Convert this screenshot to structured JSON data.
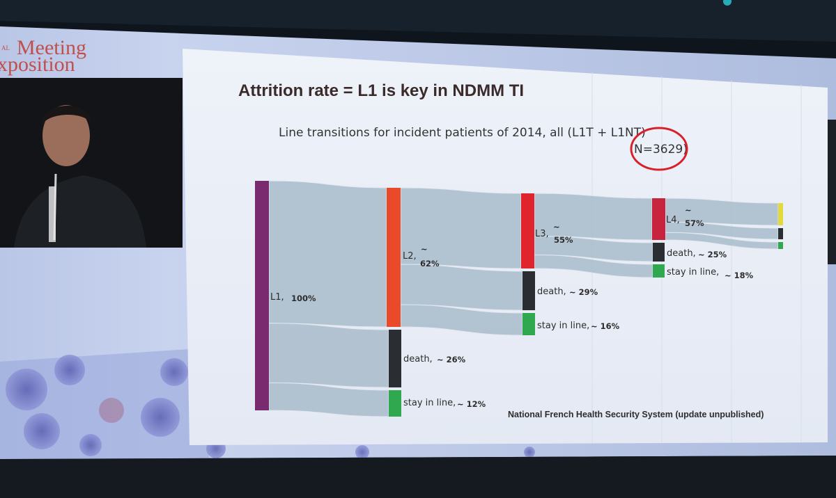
{
  "event": {
    "line1": "Meeting",
    "line2": "xposition",
    "prefix_top": "",
    "prefix_bottom": "AL"
  },
  "slide": {
    "title": "Attrition rate = L1 is key in NDMM TI",
    "subtitle": "Line transitions for incident patients of 2014, all (L1T + L1NT)",
    "n_label": "N=3629)",
    "source": "National French Health Security System (update unpublished)"
  },
  "sankey": {
    "nodes": [
      {
        "id": "L1",
        "name": "L1,",
        "value_label": "100%",
        "color": "#7a2a6e"
      },
      {
        "id": "L2",
        "name": "L2,",
        "value_label": "62%",
        "tilde": "~",
        "color": "#e84a2a"
      },
      {
        "id": "death1",
        "name": "death,",
        "value_label": "~ 26%",
        "color": "#2a2d31"
      },
      {
        "id": "stay1",
        "name": "stay in line,",
        "value_label": "~ 12%",
        "color": "#2fa84f"
      },
      {
        "id": "L3",
        "name": "L3,",
        "value_label": "55%",
        "tilde": "~",
        "color": "#e0242e"
      },
      {
        "id": "death2",
        "name": "death,",
        "value_label": "~ 29%",
        "color": "#2a2d31"
      },
      {
        "id": "stay2",
        "name": "stay in line,",
        "value_label": "~ 16%",
        "color": "#2fa84f"
      },
      {
        "id": "L4",
        "name": "L4,",
        "value_label": "57%",
        "tilde": "~",
        "color": "#c8243e"
      },
      {
        "id": "death3",
        "name": "death,",
        "value_label": "~ 25%",
        "color": "#2a2d31"
      },
      {
        "id": "stay3",
        "name": "stay in line,",
        "value_label": "~ 18%",
        "color": "#2fa84f"
      },
      {
        "id": "L5",
        "name": "",
        "value_label": "",
        "color": "#e2d93a"
      },
      {
        "id": "death4",
        "name": "",
        "value_label": "",
        "color": "#2a2d31"
      },
      {
        "id": "stay4",
        "name": "",
        "value_label": "",
        "color": "#2fa84f"
      }
    ],
    "links": [
      {
        "source": "L1",
        "target": "L2",
        "value": 62
      },
      {
        "source": "L1",
        "target": "death1",
        "value": 26
      },
      {
        "source": "L1",
        "target": "stay1",
        "value": 12
      },
      {
        "source": "L2",
        "target": "L3",
        "value": 55
      },
      {
        "source": "L2",
        "target": "death2",
        "value": 29
      },
      {
        "source": "L2",
        "target": "stay2",
        "value": 16
      },
      {
        "source": "L3",
        "target": "L4",
        "value": 57
      },
      {
        "source": "L3",
        "target": "death3",
        "value": 25
      },
      {
        "source": "L3",
        "target": "stay3",
        "value": 18
      },
      {
        "source": "L4",
        "target": "L5",
        "value": 57
      },
      {
        "source": "L4",
        "target": "death4",
        "value": 25
      },
      {
        "source": "L4",
        "target": "stay4",
        "value": 18
      }
    ],
    "colors": {
      "link": "#a9bccb"
    }
  },
  "colors": {
    "title": "#3a2a2a",
    "event_text": "#c0504d",
    "highlight_circle": "#d8202a"
  }
}
